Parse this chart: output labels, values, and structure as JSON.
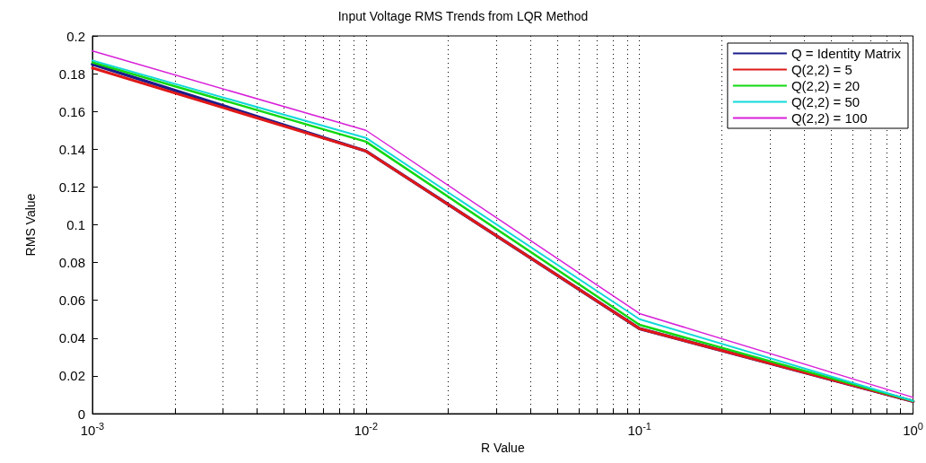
{
  "chart_data": {
    "type": "line",
    "title": "Input Voltage RMS Trends from LQR Method",
    "xlabel": "R Value",
    "ylabel": "RMS Value",
    "x": [
      0.001,
      0.01,
      0.1,
      1
    ],
    "series": [
      {
        "name": "Q = Identity Matrix",
        "color": "#1c1c8c",
        "values": [
          0.185,
          0.139,
          0.045,
          0.0065
        ]
      },
      {
        "name": "Q(2,2) = 5",
        "color": "#e01818",
        "values": [
          0.183,
          0.139,
          0.045,
          0.0065
        ]
      },
      {
        "name": "Q(2,2) = 20",
        "color": "#10d810",
        "values": [
          0.186,
          0.144,
          0.047,
          0.0067
        ]
      },
      {
        "name": "Q(2,2) = 50",
        "color": "#10d8d8",
        "values": [
          0.187,
          0.146,
          0.05,
          0.0068
        ]
      },
      {
        "name": "Q(2,2) = 100",
        "color": "#d820d8",
        "values": [
          0.192,
          0.15,
          0.053,
          0.0086
        ]
      }
    ],
    "log": "x",
    "xlim": [
      0.001,
      1
    ],
    "xticks": [
      {
        "value": 0.001,
        "label": "10$^{-3}$"
      },
      {
        "value": 0.002,
        "label": null
      },
      {
        "value": 0.003,
        "label": null
      },
      {
        "value": 0.004,
        "label": null
      },
      {
        "value": 0.005,
        "label": null
      },
      {
        "value": 0.006,
        "label": null
      },
      {
        "value": 0.007,
        "label": null
      },
      {
        "value": 0.008,
        "label": null
      },
      {
        "value": 0.009,
        "label": null
      },
      {
        "value": 0.01,
        "label": "10$^{-2}$"
      },
      {
        "value": 0.02,
        "label": null
      },
      {
        "value": 0.03,
        "label": null
      },
      {
        "value": 0.04,
        "label": null
      },
      {
        "value": 0.05,
        "label": null
      },
      {
        "value": 0.06,
        "label": null
      },
      {
        "value": 0.07,
        "label": null
      },
      {
        "value": 0.08,
        "label": null
      },
      {
        "value": 0.09,
        "label": null
      },
      {
        "value": 0.1,
        "label": "10$^{-1}$"
      },
      {
        "value": 0.2,
        "label": null
      },
      {
        "value": 0.3,
        "label": null
      },
      {
        "value": 0.4,
        "label": null
      },
      {
        "value": 0.5,
        "label": null
      },
      {
        "value": 0.6,
        "label": null
      },
      {
        "value": 0.7,
        "label": null
      },
      {
        "value": 0.8,
        "label": null
      },
      {
        "value": 0.9,
        "label": null
      },
      {
        "value": 1,
        "label": "10$^{0}$"
      }
    ],
    "ylim": [
      0,
      0.2
    ],
    "yticks": [
      0,
      0.02,
      0.04,
      0.06,
      0.08,
      0.1,
      0.12,
      0.14,
      0.16,
      0.18,
      0.2
    ],
    "grid": "x",
    "legend": "top right",
    "marker": "none",
    "line_style": "solid"
  }
}
